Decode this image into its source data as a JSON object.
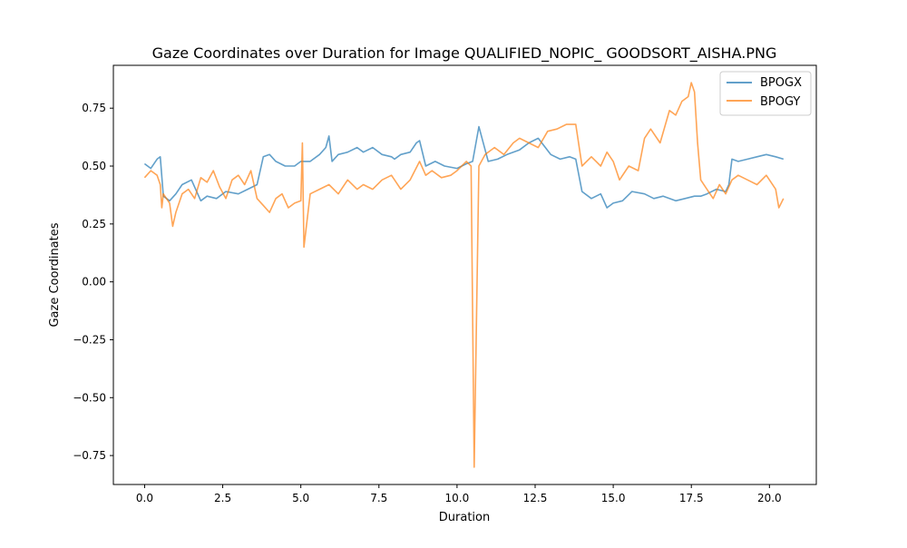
{
  "chart_data": {
    "type": "line",
    "title": "Gaze Coordinates over Duration for Image QUALIFIED_NOPIC_ GOODSORT_AISHA.PNG",
    "xlabel": "Duration",
    "ylabel": "Gaze Coordinates",
    "xlim": [
      -1.0,
      21.5
    ],
    "ylim": [
      -0.875,
      0.935
    ],
    "x_ticks": [
      0.0,
      2.5,
      5.0,
      7.5,
      10.0,
      12.5,
      15.0,
      17.5,
      20.0
    ],
    "x_tick_labels": [
      "0.0",
      "2.5",
      "5.0",
      "7.5",
      "10.0",
      "12.5",
      "15.0",
      "17.5",
      "20.0"
    ],
    "y_ticks": [
      0.75,
      0.5,
      0.25,
      0.0,
      -0.25,
      -0.5,
      -0.75
    ],
    "y_tick_labels": [
      "0.75",
      "0.50",
      "0.25",
      "0.00",
      "−0.25",
      "−0.50",
      "−0.75"
    ],
    "grid": false,
    "legend_position": "top-right",
    "series": [
      {
        "name": "BPOGX",
        "color": "#1f77b4",
        "x": [
          0.0,
          0.2,
          0.4,
          0.5,
          0.6,
          0.8,
          1.0,
          1.2,
          1.5,
          1.8,
          2.0,
          2.3,
          2.6,
          3.0,
          3.3,
          3.6,
          3.8,
          4.0,
          4.2,
          4.5,
          4.8,
          5.0,
          5.3,
          5.6,
          5.8,
          5.9,
          6.0,
          6.2,
          6.5,
          6.8,
          7.0,
          7.3,
          7.6,
          7.9,
          8.0,
          8.2,
          8.5,
          8.7,
          8.8,
          9.0,
          9.3,
          9.6,
          10.0,
          10.3,
          10.5,
          10.7,
          11.0,
          11.3,
          11.6,
          12.0,
          12.3,
          12.6,
          13.0,
          13.3,
          13.6,
          13.8,
          14.0,
          14.3,
          14.6,
          14.8,
          15.0,
          15.3,
          15.6,
          16.0,
          16.3,
          16.6,
          17.0,
          17.3,
          17.6,
          17.8,
          18.0,
          18.3,
          18.6,
          18.7,
          18.8,
          19.0,
          19.3,
          19.6,
          19.9,
          20.2,
          20.45
        ],
        "y": [
          0.51,
          0.49,
          0.53,
          0.54,
          0.37,
          0.35,
          0.38,
          0.42,
          0.44,
          0.35,
          0.37,
          0.36,
          0.39,
          0.38,
          0.4,
          0.42,
          0.54,
          0.55,
          0.52,
          0.5,
          0.5,
          0.52,
          0.52,
          0.55,
          0.58,
          0.63,
          0.52,
          0.55,
          0.56,
          0.58,
          0.56,
          0.58,
          0.55,
          0.54,
          0.53,
          0.55,
          0.56,
          0.6,
          0.61,
          0.5,
          0.52,
          0.5,
          0.49,
          0.51,
          0.52,
          0.67,
          0.52,
          0.53,
          0.55,
          0.57,
          0.6,
          0.62,
          0.55,
          0.53,
          0.54,
          0.53,
          0.39,
          0.36,
          0.38,
          0.32,
          0.34,
          0.35,
          0.39,
          0.38,
          0.36,
          0.37,
          0.35,
          0.36,
          0.37,
          0.37,
          0.38,
          0.4,
          0.39,
          0.42,
          0.53,
          0.52,
          0.53,
          0.54,
          0.55,
          0.54,
          0.53
        ]
      },
      {
        "name": "BPOGY",
        "color": "#ff7f0e",
        "x": [
          0.0,
          0.2,
          0.4,
          0.5,
          0.55,
          0.6,
          0.8,
          0.9,
          1.0,
          1.2,
          1.4,
          1.6,
          1.8,
          2.0,
          2.2,
          2.4,
          2.6,
          2.8,
          3.0,
          3.2,
          3.4,
          3.6,
          3.8,
          4.0,
          4.2,
          4.4,
          4.6,
          4.8,
          5.0,
          5.05,
          5.1,
          5.3,
          5.6,
          5.9,
          6.2,
          6.5,
          6.8,
          7.0,
          7.3,
          7.6,
          7.9,
          8.2,
          8.5,
          8.8,
          9.0,
          9.2,
          9.5,
          9.8,
          10.0,
          10.3,
          10.45,
          10.55,
          10.7,
          10.9,
          11.0,
          11.2,
          11.5,
          11.8,
          12.0,
          12.3,
          12.6,
          12.9,
          13.2,
          13.5,
          13.8,
          14.0,
          14.3,
          14.6,
          14.8,
          15.0,
          15.2,
          15.5,
          15.8,
          16.0,
          16.2,
          16.5,
          16.8,
          17.0,
          17.2,
          17.4,
          17.5,
          17.6,
          17.7,
          17.8,
          18.0,
          18.2,
          18.4,
          18.6,
          18.8,
          19.0,
          19.3,
          19.6,
          19.9,
          20.2,
          20.3,
          20.45
        ],
        "y": [
          0.45,
          0.48,
          0.46,
          0.42,
          0.32,
          0.38,
          0.34,
          0.24,
          0.3,
          0.38,
          0.4,
          0.36,
          0.45,
          0.43,
          0.48,
          0.41,
          0.36,
          0.44,
          0.46,
          0.42,
          0.48,
          0.36,
          0.33,
          0.3,
          0.36,
          0.38,
          0.32,
          0.34,
          0.35,
          0.6,
          0.15,
          0.38,
          0.4,
          0.42,
          0.38,
          0.44,
          0.4,
          0.42,
          0.4,
          0.44,
          0.46,
          0.4,
          0.44,
          0.52,
          0.46,
          0.48,
          0.45,
          0.46,
          0.48,
          0.52,
          0.5,
          -0.8,
          0.5,
          0.55,
          0.56,
          0.58,
          0.55,
          0.6,
          0.62,
          0.6,
          0.58,
          0.65,
          0.66,
          0.68,
          0.68,
          0.5,
          0.54,
          0.5,
          0.56,
          0.52,
          0.44,
          0.5,
          0.48,
          0.62,
          0.66,
          0.6,
          0.74,
          0.72,
          0.78,
          0.8,
          0.86,
          0.82,
          0.6,
          0.44,
          0.4,
          0.36,
          0.42,
          0.38,
          0.44,
          0.46,
          0.44,
          0.42,
          0.46,
          0.4,
          0.32,
          0.36
        ]
      }
    ]
  }
}
